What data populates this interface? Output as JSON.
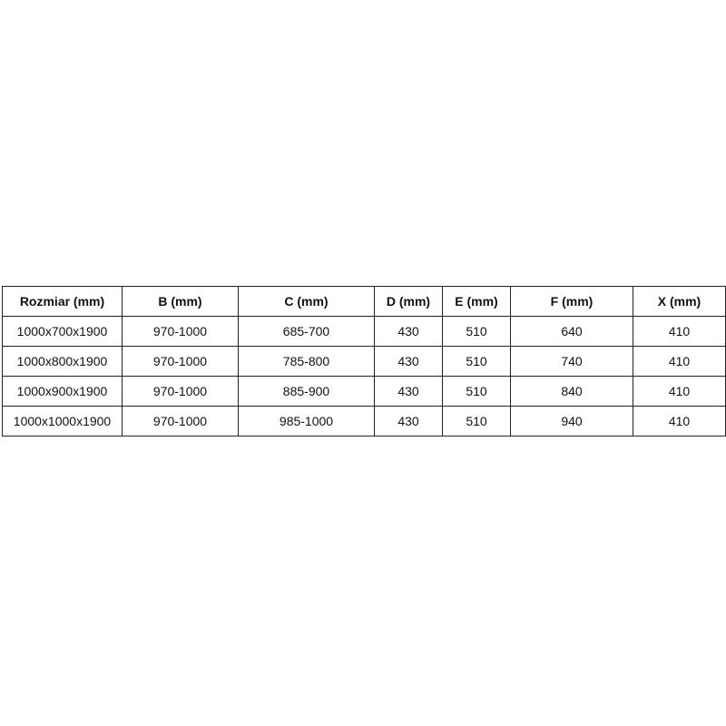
{
  "table": {
    "headers": [
      "Rozmiar (mm)",
      "B (mm)",
      "C (mm)",
      "D (mm)",
      "E (mm)",
      "F (mm)",
      "X (mm)"
    ],
    "rows": [
      [
        "1000x700x1900",
        "970-1000",
        "685-700",
        "430",
        "510",
        "640",
        "410"
      ],
      [
        "1000x800x1900",
        "970-1000",
        "785-800",
        "430",
        "510",
        "740",
        "410"
      ],
      [
        "1000x900x1900",
        "970-1000",
        "885-900",
        "430",
        "510",
        "840",
        "410"
      ],
      [
        "1000x1000x1900",
        "970-1000",
        "985-1000",
        "430",
        "510",
        "940",
        "410"
      ]
    ]
  }
}
